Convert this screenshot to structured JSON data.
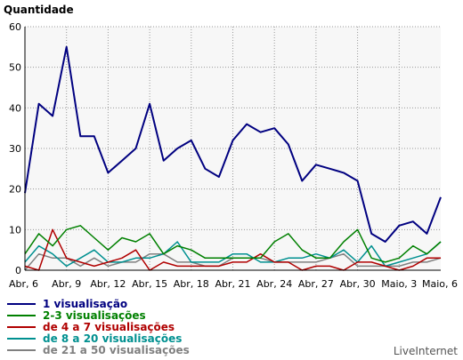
{
  "chart_data": {
    "type": "line",
    "ylabel": "Quantidade",
    "ylim": [
      0,
      60
    ],
    "yticks": [
      0,
      10,
      20,
      30,
      40,
      50,
      60
    ],
    "grid": true,
    "legend_position": "bottom-left",
    "x": [
      "Abr, 6",
      "",
      "",
      "Abr, 9",
      "",
      "",
      "Abr, 12",
      "",
      "",
      "Abr, 15",
      "",
      "",
      "Abr, 18",
      "",
      "",
      "Abr, 21",
      "",
      "",
      "Abr, 24",
      "",
      "",
      "Abr, 27",
      "",
      "",
      "Abr, 30",
      "",
      "",
      "Maio, 3",
      "",
      "",
      "Maio, 6"
    ],
    "series": [
      {
        "name": "1 visualisação",
        "color": "#000080",
        "values": [
          19,
          41,
          38,
          55,
          33,
          33,
          24,
          27,
          30,
          41,
          27,
          30,
          32,
          25,
          23,
          32,
          36,
          34,
          35,
          31,
          22,
          26,
          25,
          24,
          22,
          9,
          7,
          11,
          12,
          9,
          18
        ]
      },
      {
        "name": "2-3 visualisações",
        "color": "#008000",
        "values": [
          4,
          9,
          6,
          10,
          11,
          8,
          5,
          8,
          7,
          9,
          4,
          6,
          5,
          3,
          3,
          3,
          3,
          3,
          7,
          9,
          5,
          3,
          3,
          7,
          10,
          3,
          2,
          3,
          6,
          4,
          7
        ]
      },
      {
        "name": "de 4 a 7 visualisações",
        "color": "#b00000",
        "values": [
          1,
          0,
          10,
          3,
          2,
          1,
          2,
          3,
          5,
          0,
          2,
          1,
          1,
          1,
          1,
          2,
          2,
          4,
          2,
          2,
          0,
          1,
          1,
          0,
          2,
          2,
          1,
          0,
          1,
          3,
          3
        ]
      },
      {
        "name": "de 8 a 20 visualisações",
        "color": "#009090",
        "values": [
          2,
          6,
          4,
          1,
          3,
          5,
          2,
          2,
          3,
          3,
          4,
          7,
          2,
          2,
          2,
          4,
          4,
          2,
          2,
          3,
          3,
          4,
          3,
          5,
          2,
          6,
          1,
          2,
          3,
          4,
          7
        ]
      },
      {
        "name": "de 21 a 50 visualisações",
        "color": "#808080",
        "values": [
          0,
          4,
          3,
          3,
          1,
          3,
          1,
          2,
          2,
          4,
          4,
          2,
          2,
          1,
          1,
          3,
          3,
          3,
          2,
          2,
          2,
          2,
          3,
          4,
          1,
          1,
          1,
          1,
          2,
          2,
          3
        ]
      }
    ]
  },
  "credit": "LiveInternet"
}
